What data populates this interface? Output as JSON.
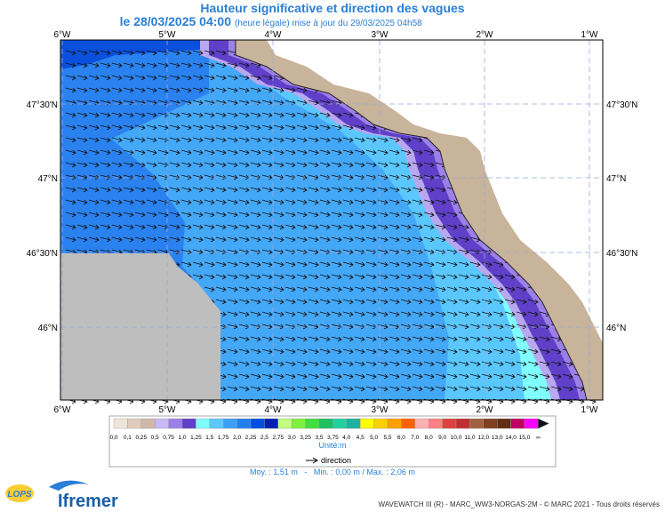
{
  "header": {
    "title": "Hauteur significative et direction des vagues",
    "date": "le 28/03/2025 04:00",
    "note": "(heure légale) mise à jour du 29/03/2025 04h58"
  },
  "map": {
    "lon_labels": [
      "6°W",
      "5°W",
      "4°W",
      "3°W",
      "2°W",
      "1°W"
    ],
    "lat_labels": [
      "47°30'N",
      "47°N",
      "46°30'N",
      "46°N"
    ]
  },
  "legend": {
    "colors": [
      "#f0e4d8",
      "#e0ccbc",
      "#d0b8a8",
      "#c8b8f4",
      "#9c80e8",
      "#6040c8",
      "#80ffff",
      "#5ac8ff",
      "#3ca0f8",
      "#2080f0",
      "#0050e0",
      "#0020b0",
      "#c0ff80",
      "#80f040",
      "#40e040",
      "#20c060",
      "#20d0a0",
      "#20b0a0",
      "#ffff00",
      "#ffd000",
      "#ffa000",
      "#ff6000",
      "#ffb0b0",
      "#ff8080",
      "#e04040",
      "#c03030",
      "#a06040",
      "#804020",
      "#603010",
      "#c00060",
      "#ff00ff"
    ],
    "labels": [
      "0,0",
      "0,1",
      "0,25",
      "0,5",
      "0,75",
      "1,0",
      "1,25",
      "1,5",
      "1,75",
      "2,0",
      "2,25",
      "2,5",
      "2,75",
      "3,0",
      "3,25",
      "3,5",
      "3,75",
      "4,0",
      "4,5",
      "5,0",
      "5,5",
      "6,0",
      "7,0",
      "8,0",
      "9,0",
      "10,0",
      "11,0",
      "12,0",
      "13,0",
      "14,0",
      "15,0",
      "∞"
    ],
    "unit": "Unité:m",
    "direction": "direction"
  },
  "stats": "Moy. : 1,51 m   -   Min. : 0,00 m / Max. : 2,06 m",
  "footer": "WAVEWATCH III (R) - MARC_WW3-NORGAS-2M - © MARC 2021 - Tous droits réservés",
  "logos": {
    "lops": "LOPS",
    "ifremer": "Ifremer"
  }
}
